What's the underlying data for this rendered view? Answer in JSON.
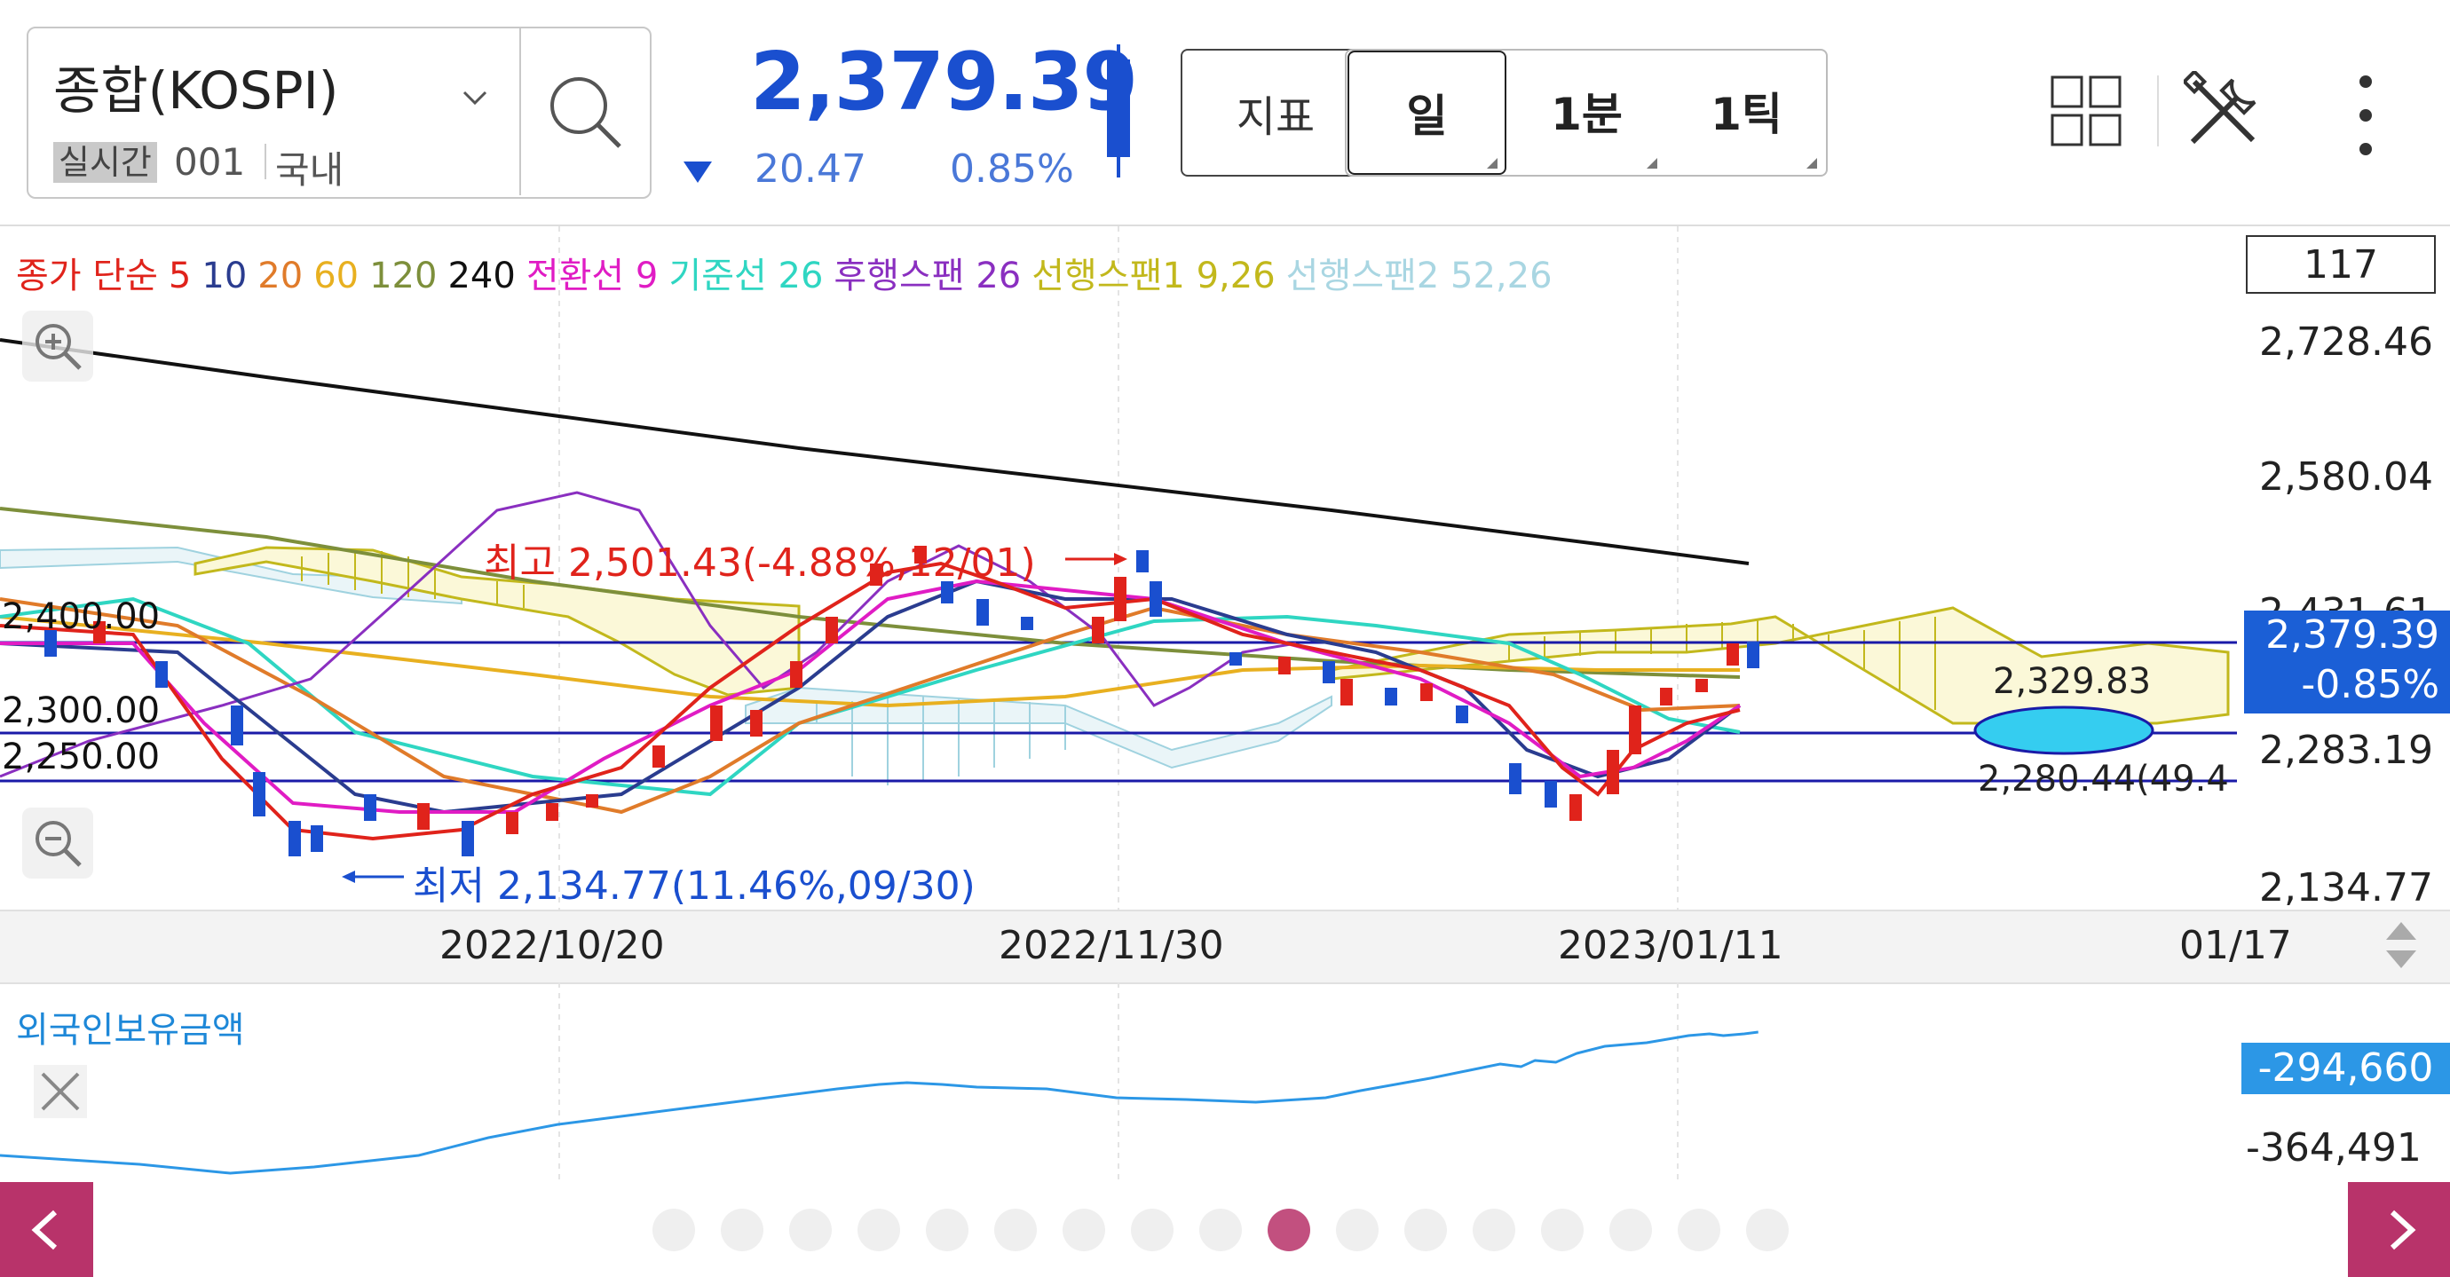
{
  "header": {
    "symbol_name": "종합(KOSPI)",
    "realtime_badge": "실시간",
    "symbol_code": "001",
    "market": "국내",
    "price": "2,379.39",
    "change_abs": "20.47",
    "change_pct": "0.85%",
    "direction": "down",
    "indicator_label": "지표",
    "period_tabs": [
      {
        "label": "일",
        "selected": true
      },
      {
        "label": "1분",
        "selected": false
      },
      {
        "label": "1틱",
        "selected": false
      }
    ],
    "icons": [
      "search-icon",
      "chevron-down-icon",
      "grid-icon",
      "tools-icon",
      "more-icon"
    ]
  },
  "legend": [
    {
      "text": "종가 단순",
      "color": "#e0231b"
    },
    {
      "text": "5",
      "color": "#e0231b"
    },
    {
      "text": "10",
      "color": "#2a3c8f"
    },
    {
      "text": "20",
      "color": "#e07b2a"
    },
    {
      "text": "60",
      "color": "#e8b020"
    },
    {
      "text": "120",
      "color": "#7d8f3b"
    },
    {
      "text": "240",
      "color": "#111111"
    },
    {
      "text": "전환선 9",
      "color": "#e01cc4"
    },
    {
      "text": "기준선 26",
      "color": "#2fd6c2"
    },
    {
      "text": "후행스팬 26",
      "color": "#8a2fc0"
    },
    {
      "text": "선행스팬1 9,26",
      "color": "#c2b81c"
    },
    {
      "text": "선행스팬2 52,26",
      "color": "#a9d6e2"
    }
  ],
  "chart": {
    "visible_count": "117",
    "y_labels": [
      "2,728.46",
      "2,580.04",
      "2,431.61",
      "2,283.19",
      "2,134.77"
    ],
    "current_price": "2,379.39",
    "current_change": "-0.85%",
    "h_lines": [
      "2,400.00",
      "2,300.00",
      "2,250.00"
    ],
    "x_labels": [
      "2022/10/20",
      "2022/11/30",
      "2023/01/11",
      "01/17"
    ],
    "high_annotation": "최고 2,501.43(-4.88%,12/01)",
    "low_annotation": "최저 2,134.77(11.46%,09/30)",
    "cloud_upper_label": "2,329.83",
    "cloud_lower_label": "2,280.44(49.4",
    "colors": {
      "up": "#e0231b",
      "down": "#1a4fcf",
      "hline": "#1a1aa8"
    }
  },
  "sub_chart": {
    "title": "외국인보유금액",
    "current_tag": "-294,660",
    "low_label": "-364,491"
  },
  "pager": {
    "count": 17,
    "active_index": 9
  }
}
